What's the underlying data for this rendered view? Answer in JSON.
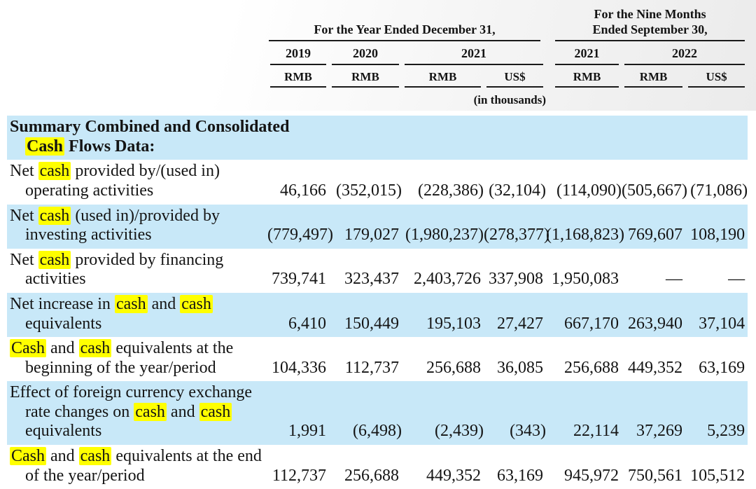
{
  "colors": {
    "row_shade": "#c8e8f8",
    "highlight": "#ffff00",
    "text": "#141414",
    "rule": "#1a1a1a",
    "background": "#ffffff"
  },
  "table": {
    "col_groups": [
      {
        "label": "For the Year Ended December 31,",
        "span": 4
      },
      {
        "label": "For the Nine Months\nEnded September 30,",
        "span": 3
      }
    ],
    "year_headers": [
      {
        "label": "2019",
        "span": 1
      },
      {
        "label": "2020",
        "span": 1
      },
      {
        "label": "2021",
        "span": 2
      },
      {
        "label": "2021",
        "span": 1
      },
      {
        "label": "2022",
        "span": 2
      }
    ],
    "currency_headers": [
      "RMB",
      "RMB",
      "RMB",
      "US$",
      "RMB",
      "RMB",
      "US$"
    ],
    "units_note": "(in thousands)",
    "section_header": "Summary Combined and Consolidated\n[[Cash]] Flows Data:",
    "rows": [
      {
        "label": "Net [[cash]] provided by/(used in)\noperating activities",
        "values": [
          "46,166",
          "(352,015)",
          "(228,386)",
          "(32,104)",
          "(114,090)",
          "(505,667)",
          "(71,086)"
        ],
        "shaded": false
      },
      {
        "label": "Net [[cash]] (used in)/provided by\ninvesting activities",
        "values": [
          "(779,497)",
          "179,027",
          "(1,980,237)",
          "(278,377)",
          "(1,168,823)",
          "769,607",
          "108,190"
        ],
        "shaded": true
      },
      {
        "label": "Net [[cash]] provided by financing\nactivities",
        "values": [
          "739,741",
          "323,437",
          "2,403,726",
          "337,908",
          "1,950,083",
          "—",
          "—"
        ],
        "shaded": false
      },
      {
        "label": "Net increase in [[cash]] and [[cash]]\nequivalents",
        "values": [
          "6,410",
          "150,449",
          "195,103",
          "27,427",
          "667,170",
          "263,940",
          "37,104"
        ],
        "shaded": true
      },
      {
        "label": "[[Cash]] and [[cash]] equivalents at the\nbeginning of the year/period",
        "values": [
          "104,336",
          "112,737",
          "256,688",
          "36,085",
          "256,688",
          "449,352",
          "63,169"
        ],
        "shaded": false
      },
      {
        "label": "Effect of foreign currency exchange\nrate changes on [[cash]] and [[cash]]\nequivalents",
        "values": [
          "1,991",
          "(6,498)",
          "(2,439)",
          "(343)",
          "22,114",
          "37,269",
          "5,239"
        ],
        "shaded": true
      },
      {
        "label": "[[Cash]] and [[cash]] equivalents at the end\nof the year/period",
        "values": [
          "112,737",
          "256,688",
          "449,352",
          "63,169",
          "945,972",
          "750,561",
          "105,512"
        ],
        "shaded": false
      }
    ]
  }
}
